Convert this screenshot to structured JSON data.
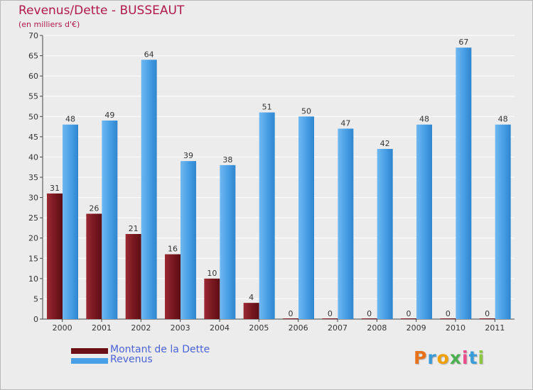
{
  "title": "Revenus/Dette - BUSSEAUT",
  "subtitle": "(en milliers d'€)",
  "colors": {
    "title": "#b0184a",
    "legend_text": "#4a63d8",
    "dette": "#7a1820",
    "revenus": "#4aa0e6"
  },
  "legend": [
    {
      "label": "Montant de la Dette",
      "color": "#6b0f17"
    },
    {
      "label": "Revenus",
      "color": "#4aa0e6"
    }
  ],
  "logo": {
    "letters": [
      "P",
      "r",
      "o",
      "x",
      "i",
      "t",
      "i"
    ],
    "colors": [
      "#e8721c",
      "#3a9bd9",
      "#f0a000",
      "#4caf50",
      "#e84c8a",
      "#3a9bd9",
      "#8dc63f"
    ]
  },
  "chart_data": {
    "type": "bar",
    "categories": [
      "2000",
      "2001",
      "2002",
      "2003",
      "2004",
      "2005",
      "2006",
      "2007",
      "2008",
      "2009",
      "2010",
      "2011"
    ],
    "series": [
      {
        "name": "Montant de la Dette",
        "values": [
          31,
          26,
          21,
          16,
          10,
          4,
          0,
          0,
          0,
          0,
          0,
          0
        ]
      },
      {
        "name": "Revenus",
        "values": [
          48,
          49,
          64,
          39,
          38,
          51,
          50,
          47,
          42,
          48,
          67,
          48
        ]
      }
    ],
    "ylim": [
      0,
      70
    ],
    "yticks": [
      0,
      5,
      10,
      15,
      20,
      25,
      30,
      35,
      40,
      45,
      50,
      55,
      60,
      65,
      70
    ],
    "grid": true,
    "legend_position": "bottom-left"
  }
}
